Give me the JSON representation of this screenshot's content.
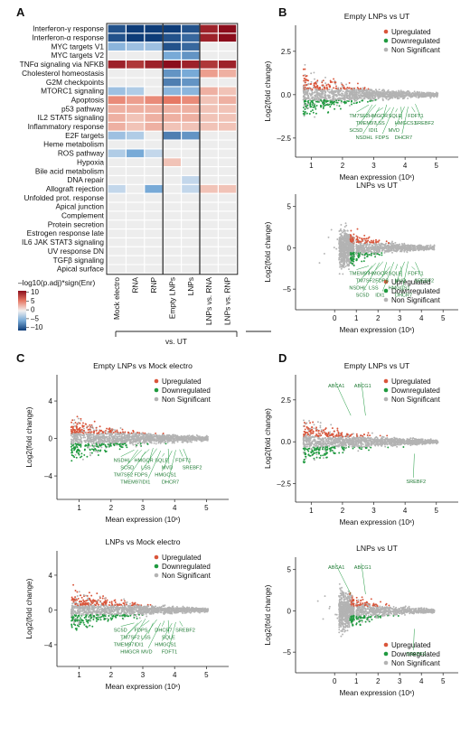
{
  "panel_labels": [
    "A",
    "B",
    "C",
    "D"
  ],
  "colors": {
    "up": "#d9553a",
    "down": "#1f9a3f",
    "ns": "#b3b3b3",
    "heat_pos_strong": "#8b0d1c",
    "heat_neg_strong": "#0e3c78",
    "cell_empty": "#ededed"
  },
  "heatmap": {
    "pathways": [
      "Interferon-γ response",
      "Interferon-α response",
      "MYC targets V1",
      "MYC targets V2",
      "TNFα signaling via NFKB",
      "Cholesterol homeostasis",
      "G2M checkpoints",
      "MTORC1 signaling",
      "Apoptosis",
      "p53 pathway",
      "IL2 STAT5 signaling",
      "Inflammatory response",
      "E2F targets",
      "Heme metabolism",
      "ROS pathway",
      "Hypoxia",
      "Bile acid metabolism",
      "DNA repair",
      "Allograft rejection",
      "Unfolded prot. response",
      "Apical junction",
      "Complement",
      "Protein secretion",
      "Estrogen response late",
      "IL6 JAK STAT3 signaling",
      "UV response DN",
      "TGFβ signaling",
      "Apical surface"
    ],
    "columns": [
      "Mock electro",
      "RNA",
      "RNP",
      "Empty LNPs",
      "LNPs",
      "LNPs vs. RNA",
      "LNPs vs. RNP"
    ],
    "group_label": "vs. UT",
    "legend_title": "–log10(p.adj)*sign(Enr)",
    "legend_ticks": [
      "10",
      "5",
      "0",
      "–5",
      "–10"
    ],
    "legend_range": [
      -10,
      10
    ],
    "values": [
      [
        -9,
        -10,
        -10,
        -10,
        -9,
        9,
        10
      ],
      [
        -9,
        -10,
        -10,
        -9,
        -8,
        9,
        10
      ],
      [
        -4,
        -3,
        -3,
        -9,
        -8,
        0,
        0
      ],
      [
        0,
        0,
        0,
        -5,
        -6,
        0,
        0
      ],
      [
        9,
        8,
        9,
        10,
        9,
        8,
        9
      ],
      [
        0,
        0,
        0,
        -6,
        -5,
        3,
        2
      ],
      [
        0,
        0,
        0,
        -7,
        -6,
        0,
        0
      ],
      [
        -3,
        -2,
        0,
        -4,
        -4,
        2,
        1
      ],
      [
        4,
        3,
        4,
        5,
        4,
        1,
        2
      ],
      [
        2,
        2,
        2,
        2,
        2,
        1,
        1
      ],
      [
        2,
        1,
        2,
        2,
        2,
        1,
        1
      ],
      [
        2,
        1,
        2,
        1,
        1,
        1,
        1
      ],
      [
        -3,
        -2,
        0,
        -7,
        -6,
        0,
        0
      ],
      [
        0,
        0,
        0,
        0,
        0,
        0,
        0
      ],
      [
        -2,
        -5,
        -1,
        0,
        0,
        0,
        0
      ],
      [
        0,
        0,
        0,
        1,
        0,
        0,
        0
      ],
      [
        0,
        0,
        0,
        0,
        0,
        0,
        0
      ],
      [
        0,
        0,
        0,
        0,
        -1,
        0,
        0
      ],
      [
        -1,
        0,
        -5,
        0,
        -1,
        1,
        1
      ],
      [
        0,
        0,
        0,
        0,
        0,
        0,
        0
      ],
      [
        0,
        0,
        0,
        0,
        0,
        0,
        0
      ],
      [
        0,
        0,
        0,
        0,
        0,
        0,
        0
      ],
      [
        0,
        0,
        0,
        0,
        0,
        0,
        0
      ],
      [
        0,
        0,
        0,
        0,
        0,
        0,
        0
      ],
      [
        0,
        0,
        0,
        0,
        0,
        0,
        0
      ],
      [
        0,
        0,
        0,
        0,
        0,
        0,
        0
      ],
      [
        0,
        0,
        0,
        0,
        0,
        0,
        0
      ],
      [
        0,
        0,
        0,
        0,
        0,
        0,
        0
      ]
    ]
  },
  "chart_data": [
    {
      "id": "B1",
      "type": "scatter",
      "title": "Empty LNPs vs UT",
      "xlabel": "Mean expression (10ˣ)",
      "ylabel": "Log2(fold change)",
      "xlim": [
        0.5,
        5.7
      ],
      "ylim": [
        -3.6,
        4.0
      ],
      "xticks": [
        1,
        2,
        3,
        4,
        5
      ],
      "yticks": [
        -2.5,
        0,
        2.5
      ],
      "ytick_labels": [
        "–2.5",
        "0.0",
        "2.5"
      ],
      "legend": [
        "Upregulated",
        "Downregulated",
        "Non Significant"
      ],
      "legend_position": "top-right",
      "gene_labels": [
        "TM7SF2",
        "TMEM97",
        "SC5D",
        "NSDHL",
        "HMGCR",
        "LSS",
        "IDI1",
        "FDPS",
        "SQLE",
        "HMGCS1",
        "MVD",
        "DHCR7",
        "FDFT1",
        "SREBF2"
      ]
    },
    {
      "id": "B2",
      "type": "scatter",
      "title": "LNPs vs UT",
      "xlabel": "Mean expression (10ˣ)",
      "ylabel": "Log2(fold change)",
      "xlim": [
        -1.8,
        5.7
      ],
      "ylim": [
        -7.5,
        6.5
      ],
      "xticks": [
        0,
        1,
        2,
        3,
        4,
        5
      ],
      "yticks": [
        -5,
        0,
        5
      ],
      "ytick_labels": [
        "–5",
        "0",
        "5"
      ],
      "legend": [
        "Upregulated",
        "Downregulated",
        "Non Significant"
      ],
      "legend_position": "bottom-right",
      "gene_labels": [
        "TMEM97",
        "TM7SF2",
        "NSDHL",
        "SC5D",
        "HMGCR",
        "FDPS",
        "LSS",
        "IDI1",
        "SQLE",
        "MVD",
        "HMGCS1",
        "DHCR7",
        "FDFT1",
        "SREBF2"
      ]
    },
    {
      "id": "C1",
      "type": "scatter",
      "title": "Empty LNPs vs Mock electro",
      "xlabel": "Mean expression (10ˣ)",
      "ylabel": "Log2(fold change)",
      "xlim": [
        0.3,
        5.7
      ],
      "ylim": [
        -6.5,
        6.8
      ],
      "xticks": [
        1,
        2,
        3,
        4,
        5
      ],
      "yticks": [
        -4,
        0,
        4
      ],
      "ytick_labels": [
        "–4",
        "0",
        "4"
      ],
      "legend": [
        "Upregulated",
        "Downregulated",
        "Non Significant"
      ],
      "legend_position": "top-right",
      "gene_labels": [
        "NSDHL",
        "SC5D",
        "TM7SF2",
        "TMEM97",
        "HMGCR",
        "LSS",
        "FDPS",
        "IDI1",
        "SQLE",
        "MVD",
        "HMGCS1",
        "DHCR7",
        "FDFT1",
        "SREBF2"
      ]
    },
    {
      "id": "C2",
      "type": "scatter",
      "title": "LNPs vs Mock electro",
      "xlabel": "Mean expression (10ˣ)",
      "ylabel": "Log2(fold change)",
      "xlim": [
        0.3,
        5.7
      ],
      "ylim": [
        -6.5,
        6.8
      ],
      "xticks": [
        1,
        2,
        3,
        4,
        5
      ],
      "yticks": [
        -4,
        0,
        4
      ],
      "ytick_labels": [
        "–4",
        "0",
        "4"
      ],
      "legend": [
        "Upregulated",
        "Downregulated",
        "Non Significant"
      ],
      "legend_position": "top-right",
      "gene_labels": [
        "SC5D",
        "TM7SF2",
        "TMEM97",
        "HMGCR",
        "FDPS",
        "LSS",
        "IDI1",
        "MVD",
        "DHCR7",
        "SQLE",
        "HMGCS1",
        "FDFT1",
        "SREBF2"
      ]
    },
    {
      "id": "D1",
      "type": "scatter",
      "title": "Empty LNPs vs UT",
      "xlabel": "Mean expression (10ˣ)",
      "ylabel": "Log2(fold change)",
      "xlim": [
        0.5,
        5.7
      ],
      "ylim": [
        -3.6,
        4.0
      ],
      "xticks": [
        1,
        2,
        3,
        4,
        5
      ],
      "yticks": [
        -2.5,
        0,
        2.5
      ],
      "ytick_labels": [
        "–2.5",
        "0.0",
        "2.5"
      ],
      "legend": [
        "Upregulated",
        "Downregulated",
        "Non Significant"
      ],
      "legend_position": "top-right",
      "gene_labels": [
        "ABCA1",
        "ABCG1",
        "SREBF2"
      ]
    },
    {
      "id": "D2",
      "type": "scatter",
      "title": "LNPs vs UT",
      "xlabel": "Mean expression (10ˣ)",
      "ylabel": "Log2(fold change)",
      "xlim": [
        -1.8,
        5.7
      ],
      "ylim": [
        -7.5,
        6.5
      ],
      "xticks": [
        0,
        1,
        2,
        3,
        4,
        5
      ],
      "yticks": [
        -5,
        0,
        5
      ],
      "ytick_labels": [
        "–5",
        "0",
        "5"
      ],
      "legend": [
        "Upregulated",
        "Downregulated",
        "Non Significant"
      ],
      "legend_position": "bottom-right",
      "gene_labels": [
        "ABCA1",
        "ABCG1",
        "SREBF2"
      ]
    }
  ]
}
